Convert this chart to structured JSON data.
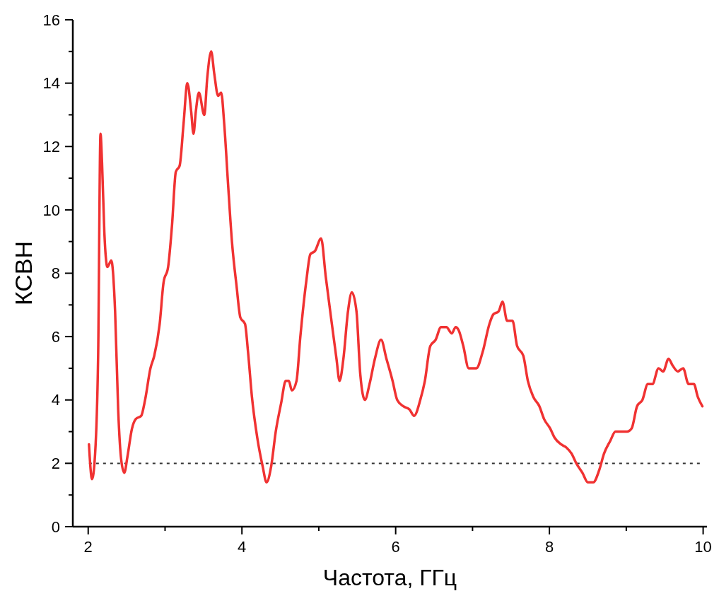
{
  "chart_data": {
    "type": "line",
    "xlabel": "Частота, ГГц",
    "ylabel": "КСВН",
    "xlim": [
      1.8,
      10.05
    ],
    "ylim": [
      0,
      16
    ],
    "xticks": [
      2,
      {
        "value": 3,
        "label": null
      },
      4,
      {
        "value": 5,
        "label": null
      },
      6,
      {
        "value": 7,
        "label": null
      },
      8,
      {
        "value": 9,
        "label": null
      },
      10
    ],
    "yticks": [
      0,
      {
        "value": 1,
        "label": null
      },
      2,
      {
        "value": 3,
        "label": null
      },
      4,
      {
        "value": 5,
        "label": null
      },
      6,
      {
        "value": 7,
        "label": null
      },
      8,
      {
        "value": 9,
        "label": null
      },
      10,
      {
        "value": 11,
        "label": null
      },
      12,
      {
        "value": 13,
        "label": null
      },
      14,
      {
        "value": 15,
        "label": null
      },
      16
    ],
    "grid": false,
    "marker": "none",
    "line_style": "solid",
    "ref_lines": [
      {
        "axis": "y",
        "value": 2,
        "color": "#333333",
        "line_style": "dotted"
      }
    ],
    "series": [
      {
        "color": "#f03232",
        "x": [
          2.01,
          2.05,
          2.09,
          2.13,
          2.16,
          2.18,
          2.21,
          2.25,
          2.3,
          2.35,
          2.39,
          2.43,
          2.47,
          2.51,
          2.57,
          2.62,
          2.69,
          2.74,
          2.81,
          2.86,
          2.93,
          2.98,
          3.04,
          3.09,
          3.14,
          3.19,
          3.24,
          3.29,
          3.34,
          3.37,
          3.4,
          3.44,
          3.51,
          3.55,
          3.6,
          3.64,
          3.69,
          3.73,
          3.77,
          3.82,
          3.87,
          3.93,
          3.98,
          4.04,
          4.08,
          4.13,
          4.2,
          4.27,
          4.32,
          4.38,
          4.44,
          4.51,
          4.57,
          4.61,
          4.65,
          4.71,
          4.76,
          4.84,
          4.89,
          4.95,
          5.03,
          5.09,
          5.17,
          5.23,
          5.27,
          5.32,
          5.38,
          5.43,
          5.49,
          5.54,
          5.6,
          5.66,
          5.73,
          5.81,
          5.88,
          5.96,
          6.02,
          6.1,
          6.18,
          6.24,
          6.32,
          6.38,
          6.45,
          6.52,
          6.59,
          6.66,
          6.73,
          6.78,
          6.82,
          6.88,
          6.95,
          7.05,
          7.13,
          7.22,
          7.27,
          7.34,
          7.39,
          7.45,
          7.52,
          7.58,
          7.66,
          7.72,
          7.79,
          7.87,
          7.93,
          8.01,
          8.07,
          8.15,
          8.22,
          8.29,
          8.35,
          8.43,
          8.5,
          8.57,
          8.65,
          8.71,
          8.79,
          8.86,
          8.93,
          9.01,
          9.07,
          9.14,
          9.21,
          9.28,
          9.34,
          9.42,
          9.48,
          9.55,
          9.6,
          9.67,
          9.74,
          9.81,
          9.88,
          9.93,
          9.99
        ],
        "values": [
          2.6,
          1.5,
          2.3,
          5.5,
          12.4,
          11.5,
          9.3,
          8.2,
          8.4,
          6.8,
          3.7,
          2.1,
          1.7,
          2.2,
          3.1,
          3.4,
          3.5,
          4.0,
          5.0,
          5.4,
          6.4,
          7.7,
          8.2,
          9.5,
          11.2,
          11.4,
          12.7,
          14.0,
          13.1,
          12.4,
          13.1,
          13.7,
          13.0,
          14.2,
          15.0,
          14.3,
          13.6,
          13.7,
          12.7,
          10.8,
          9.0,
          7.6,
          6.6,
          6.4,
          5.5,
          4.1,
          2.8,
          1.9,
          1.4,
          1.9,
          3.0,
          3.9,
          4.6,
          4.6,
          4.3,
          4.6,
          6.0,
          7.8,
          8.6,
          8.7,
          9.1,
          7.9,
          6.4,
          5.3,
          4.6,
          5.3,
          6.8,
          7.4,
          6.8,
          4.8,
          4.0,
          4.5,
          5.3,
          5.9,
          5.3,
          4.6,
          4.0,
          3.8,
          3.7,
          3.5,
          4.0,
          4.6,
          5.7,
          5.9,
          6.3,
          6.3,
          6.1,
          6.3,
          6.2,
          5.7,
          5.0,
          5.0,
          5.5,
          6.4,
          6.7,
          6.8,
          7.1,
          6.5,
          6.5,
          5.7,
          5.4,
          4.6,
          4.1,
          3.8,
          3.4,
          3.1,
          2.8,
          2.6,
          2.5,
          2.3,
          2.0,
          1.7,
          1.4,
          1.4,
          1.8,
          2.3,
          2.7,
          3.0,
          3.0,
          3.0,
          3.1,
          3.8,
          4.0,
          4.5,
          4.5,
          5.0,
          4.9,
          5.3,
          5.1,
          4.9,
          5.0,
          4.5,
          4.5,
          4.1,
          3.8
        ]
      }
    ]
  }
}
